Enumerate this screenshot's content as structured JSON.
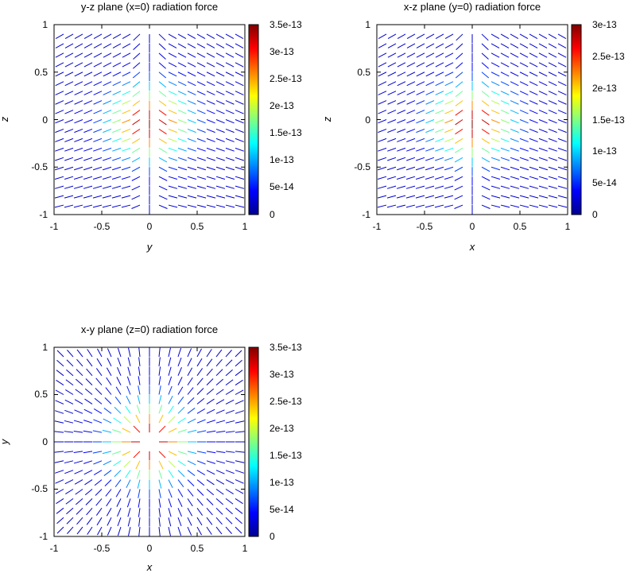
{
  "chart_data": [
    {
      "type": "vector-field",
      "title": "y-z plane (x=0) radiation force",
      "xlabel": "y",
      "ylabel": "z",
      "xlim": [
        -1,
        1
      ],
      "ylim": [
        -1,
        1
      ],
      "xticks": [
        "-1",
        "-0.5",
        "0",
        "0.5",
        "1"
      ],
      "yticks": [
        "1",
        "0.5",
        "0",
        "-0.5",
        "-1"
      ],
      "colorbar": {
        "min": 0,
        "max": 3.5e-13,
        "ticks": [
          "3.5e-13",
          "3e-13",
          "2.5e-13",
          "2e-13",
          "1.5e-13",
          "1e-13",
          "5e-14",
          "0"
        ]
      },
      "field": "yz",
      "grid": false
    },
    {
      "type": "vector-field",
      "title": "x-z plane (y=0) radiation force",
      "xlabel": "x",
      "ylabel": "z",
      "xlim": [
        -1,
        1
      ],
      "ylim": [
        -1,
        1
      ],
      "xticks": [
        "-1",
        "-0.5",
        "0",
        "0.5",
        "1"
      ],
      "yticks": [
        "1",
        "0.5",
        "0",
        "-0.5",
        "-1"
      ],
      "colorbar": {
        "min": 0,
        "max": 3e-13,
        "ticks": [
          "3e-13",
          "2.5e-13",
          "2e-13",
          "1.5e-13",
          "1e-13",
          "5e-14",
          "0"
        ]
      },
      "field": "xz",
      "grid": false
    },
    {
      "type": "vector-field",
      "title": "x-y plane (z=0) radiation force",
      "xlabel": "x",
      "ylabel": "y",
      "xlim": [
        -1,
        1
      ],
      "ylim": [
        -1,
        1
      ],
      "xticks": [
        "-1",
        "-0.5",
        "0",
        "0.5",
        "1"
      ],
      "yticks": [
        "1",
        "0.5",
        "0",
        "-0.5",
        "-1"
      ],
      "colorbar": {
        "min": 0,
        "max": 3.5e-13,
        "ticks": [
          "3.5e-13",
          "3e-13",
          "2.5e-13",
          "2e-13",
          "1.5e-13",
          "1e-13",
          "5e-14",
          "0"
        ]
      },
      "field": "xy",
      "grid": false
    }
  ]
}
